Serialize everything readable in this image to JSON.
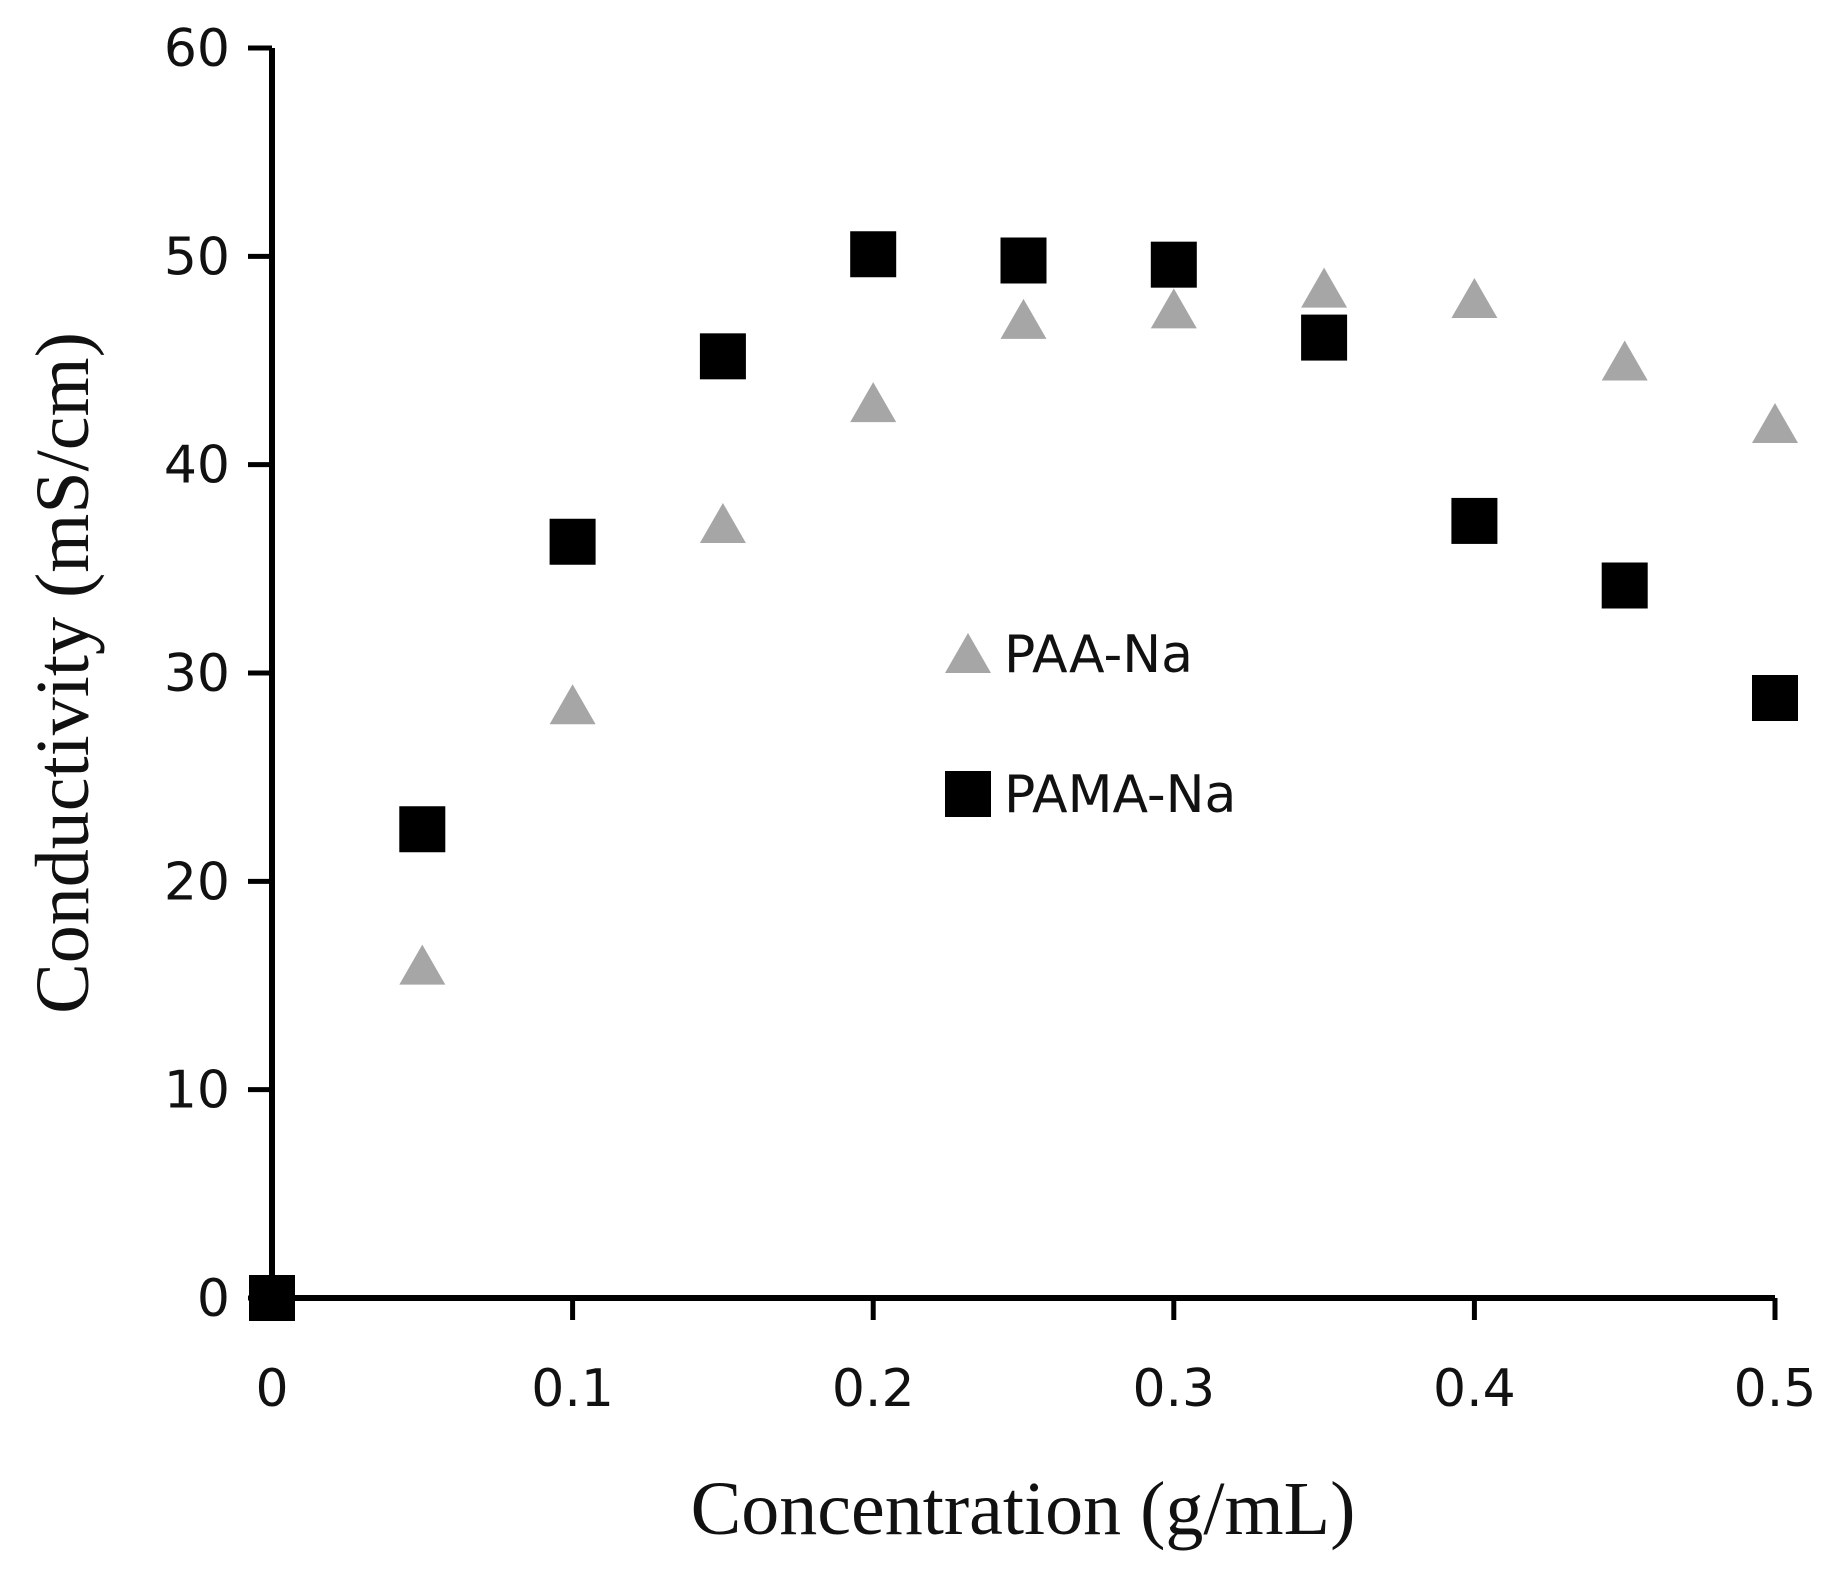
{
  "chart_data": {
    "type": "scatter",
    "title": "",
    "xlabel": "Concentration (g/mL)",
    "ylabel": "Conductivity (mS/cm)",
    "xlim": [
      0,
      0.5
    ],
    "ylim": [
      0,
      60
    ],
    "xticks": [
      0,
      0.1,
      0.2,
      0.3,
      0.4,
      0.5
    ],
    "xtick_labels": [
      "0",
      "0.1",
      "0.2",
      "0.3",
      "0.4",
      "0.5"
    ],
    "yticks": [
      0,
      10,
      20,
      30,
      40,
      50,
      60
    ],
    "ytick_labels": [
      "0",
      "10",
      "20",
      "30",
      "40",
      "50",
      "60"
    ],
    "grid": false,
    "legend_position": "center",
    "series": [
      {
        "name": "PAA-Na",
        "marker": "triangle",
        "color": "#a6a6a6",
        "x": [
          0,
          0.05,
          0.1,
          0.15,
          0.2,
          0.25,
          0.3,
          0.35,
          0.4,
          0.45,
          0.5
        ],
        "y": [
          0,
          16,
          28.5,
          37.2,
          43,
          47,
          47.5,
          48.5,
          48,
          45,
          42
        ]
      },
      {
        "name": "PAMA-Na",
        "marker": "square",
        "color": "#000000",
        "x": [
          0,
          0.05,
          0.1,
          0.15,
          0.2,
          0.25,
          0.3,
          0.35,
          0.4,
          0.45,
          0.5
        ],
        "y": [
          0,
          22.5,
          36.3,
          45.2,
          50.1,
          49.8,
          49.6,
          46.1,
          37.3,
          34.2,
          28.8
        ]
      }
    ]
  }
}
